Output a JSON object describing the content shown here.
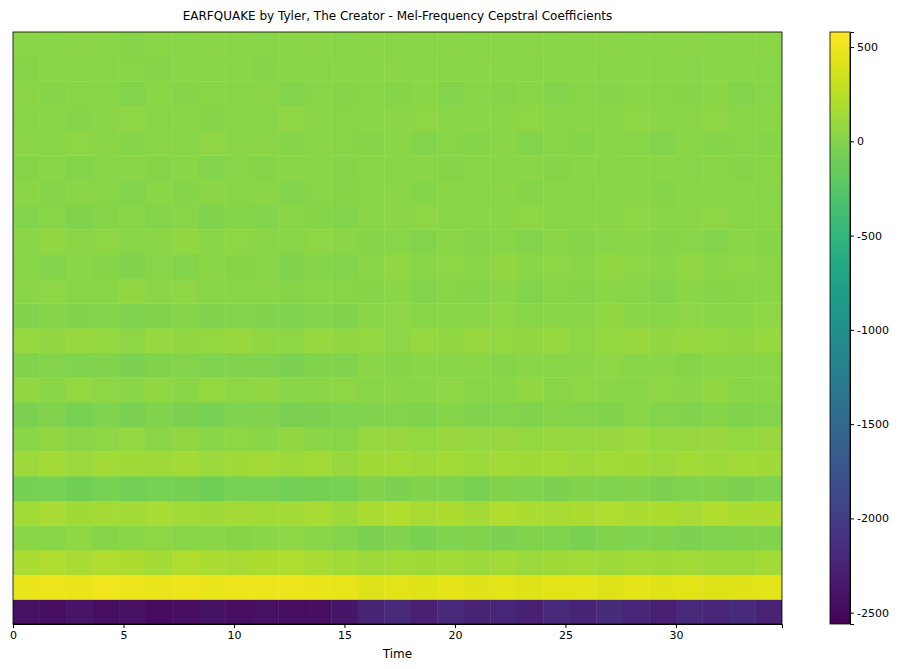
{
  "chart_data": {
    "type": "heatmap",
    "title": "EARFQUAKE by Tyler, The Creator - Mel-Frequency Cepstral Coefficients",
    "x_label": "Time",
    "x_bins": [
      0,
      1.2,
      2.4,
      3.6,
      4.8,
      6,
      7.2,
      8.4,
      9.6,
      10.8,
      12,
      13.2,
      14.4,
      15.6,
      16.8,
      18,
      19.2,
      20.4,
      21.6,
      22.8,
      24,
      25.2,
      26.4,
      27.6,
      28.8,
      30,
      31.2,
      32.4,
      33.6,
      34.8
    ],
    "xlim": [
      0,
      34.8
    ],
    "xticks": [
      0,
      5,
      10,
      15,
      20,
      25,
      30
    ],
    "tick_labels": "x",
    "color": "viridis",
    "colorbar": {
      "range": [
        -2560,
        580
      ],
      "ticks": [
        500,
        0,
        -500,
        -1000,
        -1500,
        -2000,
        -2500
      ]
    },
    "cells": [
      [
        -2420,
        -2450,
        -2400,
        -2460,
        -2430,
        -2470,
        -2440,
        -2410,
        -2450,
        -2430,
        -2460,
        -2440,
        -2380,
        -2250,
        -2200,
        -2280,
        -2180,
        -2260,
        -2220,
        -2290,
        -2200,
        -2250,
        -2170,
        -2240,
        -2280,
        -2210,
        -2230,
        -2190,
        -2260
      ],
      [
        480,
        500,
        470,
        510,
        490,
        480,
        505,
        470,
        495,
        485,
        500,
        475,
        460,
        420,
        440,
        410,
        450,
        430,
        445,
        415,
        435,
        440,
        420,
        450,
        425,
        440,
        415,
        430,
        445
      ],
      [
        180,
        200,
        170,
        210,
        190,
        160,
        200,
        185,
        170,
        195,
        205,
        175,
        150,
        120,
        140,
        130,
        150,
        125,
        140,
        110,
        135,
        145,
        120,
        150,
        130,
        140,
        115,
        125,
        140
      ],
      [
        40,
        20,
        60,
        10,
        30,
        50,
        20,
        40,
        10,
        30,
        50,
        20,
        0,
        -40,
        -20,
        -50,
        -30,
        -10,
        -40,
        -20,
        -30,
        -50,
        -10,
        -30,
        -20,
        -40,
        -30,
        -10,
        -20
      ],
      [
        150,
        170,
        130,
        160,
        140,
        170,
        150,
        130,
        160,
        140,
        150,
        170,
        120,
        180,
        200,
        170,
        190,
        160,
        200,
        180,
        170,
        190,
        200,
        180,
        190,
        170,
        200,
        180,
        190
      ],
      [
        -80,
        -60,
        -100,
        -70,
        -90,
        -60,
        -80,
        -100,
        -70,
        -60,
        -90,
        -80,
        -60,
        -20,
        -40,
        -10,
        -30,
        -50,
        -20,
        -30,
        -40,
        -10,
        -30,
        -20,
        -40,
        -30,
        -20,
        -40,
        -30
      ],
      [
        120,
        140,
        110,
        150,
        130,
        120,
        140,
        110,
        130,
        150,
        120,
        140,
        100,
        130,
        150,
        120,
        140,
        110,
        150,
        130,
        140,
        120,
        150,
        130,
        110,
        140,
        120,
        150,
        130
      ],
      [
        40,
        60,
        30,
        50,
        70,
        40,
        60,
        30,
        50,
        40,
        60,
        30,
        20,
        80,
        90,
        70,
        100,
        80,
        90,
        70,
        100,
        80,
        90,
        110,
        80,
        90,
        100,
        70,
        90
      ],
      [
        -40,
        -20,
        -60,
        -30,
        -50,
        -20,
        -40,
        -60,
        -30,
        -20,
        -50,
        -40,
        -30,
        -10,
        0,
        -20,
        10,
        -10,
        0,
        -20,
        10,
        0,
        -10,
        20,
        0,
        -10,
        10,
        -20,
        0
      ],
      [
        60,
        40,
        70,
        50,
        30,
        60,
        40,
        70,
        50,
        60,
        40,
        30,
        50,
        20,
        40,
        30,
        50,
        20,
        40,
        60,
        30,
        50,
        40,
        20,
        50,
        30,
        60,
        40,
        30
      ],
      [
        -20,
        0,
        -30,
        -10,
        -40,
        -20,
        0,
        -30,
        -10,
        -20,
        -40,
        -10,
        -20,
        30,
        10,
        40,
        20,
        30,
        10,
        40,
        20,
        30,
        50,
        20,
        40,
        10,
        30,
        20,
        40
      ],
      [
        80,
        60,
        90,
        70,
        50,
        80,
        60,
        70,
        90,
        60,
        50,
        80,
        60,
        70,
        50,
        80,
        60,
        90,
        70,
        60,
        80,
        50,
        70,
        90,
        60,
        80,
        70,
        60,
        80
      ],
      [
        -10,
        10,
        -20,
        0,
        -30,
        -10,
        10,
        -20,
        0,
        -10,
        -30,
        0,
        -10,
        30,
        50,
        20,
        40,
        30,
        50,
        20,
        40,
        30,
        60,
        40,
        20,
        50,
        30,
        40,
        50
      ],
      [
        30,
        50,
        20,
        40,
        60,
        30,
        50,
        20,
        40,
        30,
        10,
        40,
        20,
        10,
        30,
        0,
        20,
        10,
        30,
        0,
        20,
        10,
        30,
        20,
        0,
        30,
        10,
        20,
        30
      ],
      [
        20,
        0,
        30,
        10,
        -10,
        20,
        0,
        30,
        10,
        20,
        -10,
        10,
        0,
        40,
        60,
        30,
        50,
        40,
        60,
        30,
        50,
        40,
        60,
        50,
        30,
        60,
        40,
        50,
        40
      ],
      [
        40,
        60,
        30,
        50,
        20,
        40,
        60,
        30,
        50,
        40,
        20,
        50,
        30,
        10,
        20,
        0,
        30,
        10,
        20,
        0,
        30,
        10,
        20,
        30,
        10,
        20,
        0,
        30,
        10
      ],
      [
        0,
        20,
        -10,
        10,
        30,
        0,
        20,
        -10,
        10,
        0,
        30,
        10,
        0,
        40,
        30,
        50,
        20,
        40,
        30,
        50,
        20,
        40,
        30,
        50,
        40,
        30,
        50,
        20,
        40
      ],
      [
        30,
        10,
        40,
        20,
        0,
        30,
        10,
        40,
        20,
        30,
        0,
        20,
        10,
        20,
        40,
        10,
        30,
        20,
        40,
        10,
        30,
        20,
        40,
        30,
        10,
        40,
        20,
        30,
        20
      ],
      [
        10,
        30,
        0,
        20,
        40,
        10,
        30,
        0,
        20,
        10,
        40,
        20,
        10,
        30,
        20,
        40,
        10,
        30,
        20,
        40,
        10,
        30,
        20,
        40,
        30,
        20,
        40,
        10,
        30
      ],
      [
        40,
        20,
        50,
        30,
        10,
        40,
        20,
        50,
        30,
        40,
        10,
        30,
        20,
        10,
        30,
        0,
        20,
        10,
        30,
        0,
        20,
        10,
        30,
        20,
        0,
        30,
        10,
        20,
        10
      ],
      [
        20,
        40,
        10,
        30,
        50,
        20,
        40,
        10,
        30,
        20,
        50,
        30,
        20,
        40,
        30,
        50,
        20,
        40,
        30,
        50,
        20,
        40,
        30,
        50,
        40,
        30,
        50,
        20,
        40
      ],
      [
        30,
        10,
        40,
        20,
        0,
        30,
        10,
        40,
        20,
        30,
        0,
        20,
        10,
        20,
        10,
        30,
        0,
        20,
        10,
        30,
        0,
        20,
        10,
        30,
        20,
        10,
        30,
        0,
        20
      ],
      [
        10,
        30,
        20,
        40,
        20,
        10,
        30,
        20,
        40,
        10,
        30,
        20,
        30,
        20,
        40,
        30,
        20,
        40,
        30,
        20,
        40,
        30,
        20,
        40,
        30,
        20,
        40,
        30,
        20
      ],
      [
        30,
        20,
        40,
        30,
        10,
        30,
        20,
        40,
        30,
        20,
        40,
        30,
        20,
        30,
        20,
        40,
        30,
        20,
        40,
        30,
        20,
        40,
        30,
        20,
        40,
        30,
        20,
        40,
        30
      ]
    ]
  }
}
